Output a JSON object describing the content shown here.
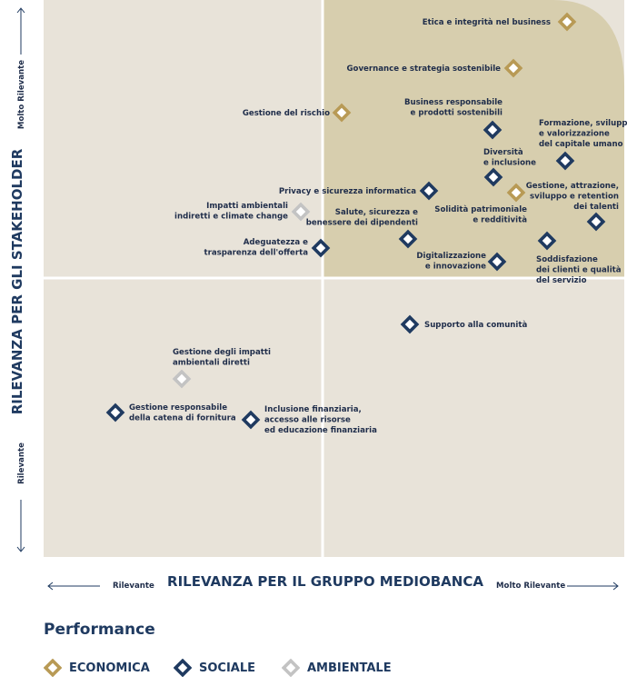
{
  "colors": {
    "economica": "#b89a55",
    "sociale": "#1f3a60",
    "ambientale": "#c3c3c3",
    "quadrant_bg": "#e8e3d9",
    "highlight_bg": "#d7ceae"
  },
  "chart_data": {
    "type": "scatter",
    "xlabel": "RILEVANZA PER IL GRUPPO MEDIOBANCA",
    "ylabel": "RILEVANZA PER GLI STAKEHOLDER",
    "x_low": "Rilevante",
    "x_high": "Molto Rilevante",
    "y_low": "Rilevante",
    "y_high": "Molto Rilevante",
    "points": [
      {
        "lines": [
          "Etica e integrità nel business"
        ],
        "cat": "economica"
      },
      {
        "lines": [
          "Governance e strategia sostenibile"
        ],
        "cat": "economica"
      },
      {
        "lines": [
          "Gestione del rischio"
        ],
        "cat": "economica"
      },
      {
        "lines": [
          "Business responsabile",
          "e prodotti sostenibili"
        ],
        "cat": "sociale"
      },
      {
        "lines": [
          "Formazione, sviluppo",
          "e valorizzazione",
          "del capitale umano"
        ],
        "cat": "sociale"
      },
      {
        "lines": [
          "Diversità",
          "e inclusione"
        ],
        "cat": "sociale"
      },
      {
        "lines": [
          "Gestione, attrazione,",
          "sviluppo e retention",
          "dei talenti"
        ],
        "cat": "sociale"
      },
      {
        "lines": [
          "Solidità patrimoniale",
          "e redditività"
        ],
        "cat": "economica"
      },
      {
        "lines": [
          "Privacy e sicurezza informatica"
        ],
        "cat": "sociale"
      },
      {
        "lines": [
          "Impatti ambientali",
          "indiretti e climate change"
        ],
        "cat": "ambientale"
      },
      {
        "lines": [
          "Salute, sicurezza e",
          "benessere dei dipendenti"
        ],
        "cat": "sociale"
      },
      {
        "lines": [
          "Adeguatezza e",
          "trasparenza dell'offerta"
        ],
        "cat": "sociale"
      },
      {
        "lines": [
          "Digitalizzazione",
          "e innovazione"
        ],
        "cat": "sociale"
      },
      {
        "lines": [
          "Soddisfazione",
          "dei clienti e qualità",
          "del servizio"
        ],
        "cat": "sociale"
      },
      {
        "lines": [
          "Supporto alla comunità"
        ],
        "cat": "sociale"
      },
      {
        "lines": [
          "Gestione degli impatti",
          "ambientali diretti"
        ],
        "cat": "ambientale"
      },
      {
        "lines": [
          "Gestione responsabile",
          "della catena di fornitura"
        ],
        "cat": "sociale"
      },
      {
        "lines": [
          "Inclusione finanziaria,",
          "accesso alle risorse",
          "ed educazione finanziaria"
        ],
        "cat": "sociale"
      }
    ]
  },
  "legend": {
    "title": "Performance",
    "items": [
      {
        "cat": "economica",
        "label": "ECONOMICA"
      },
      {
        "cat": "sociale",
        "label": "SOCIALE"
      },
      {
        "cat": "ambientale",
        "label": "AMBIENTALE"
      }
    ]
  }
}
